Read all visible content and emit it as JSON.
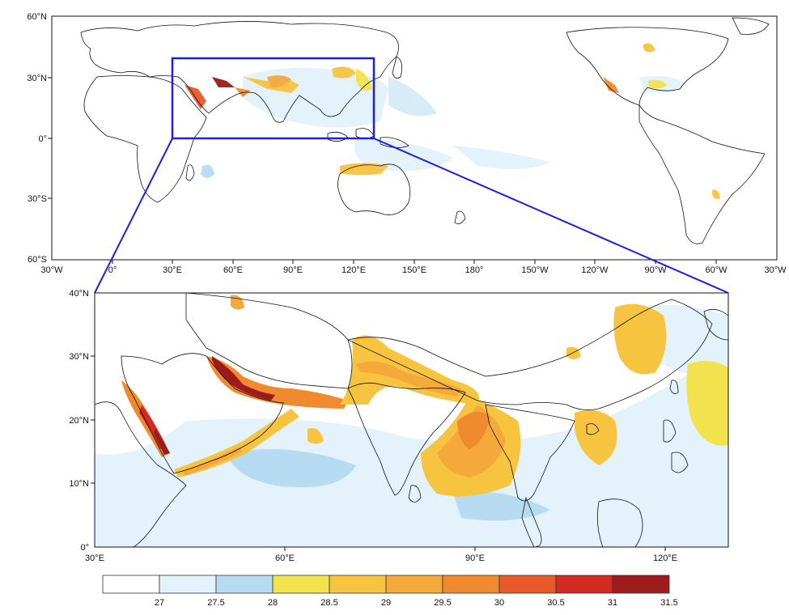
{
  "global_map": {
    "lat_labels": [
      "60°N",
      "30°N",
      "0°",
      "30°S",
      "60°S"
    ],
    "lon_labels": [
      "30°W",
      "0°",
      "30°E",
      "60°E",
      "90°E",
      "120°E",
      "150°E",
      "180°",
      "150°W",
      "120°W",
      "90°W",
      "60°W",
      "30°W"
    ],
    "inset_box_color": "#1f1fe0"
  },
  "zoom_map": {
    "lat_labels": [
      "40°N",
      "30°N",
      "20°N",
      "10°N",
      "0°"
    ],
    "lon_labels": [
      "30°E",
      "60°E",
      "90°E",
      "120°E"
    ]
  },
  "colorbar": {
    "labels": [
      "27",
      "27.5",
      "28",
      "28.5",
      "29",
      "29.5",
      "30",
      "30.5",
      "31",
      "31.5"
    ],
    "colors": [
      "#ffffff",
      "#e3f2fb",
      "#b7dcf2",
      "#f2e24d",
      "#f7c43f",
      "#f4a93a",
      "#ef8a2f",
      "#e85a2a",
      "#d42a24",
      "#9e1b1b"
    ]
  }
}
